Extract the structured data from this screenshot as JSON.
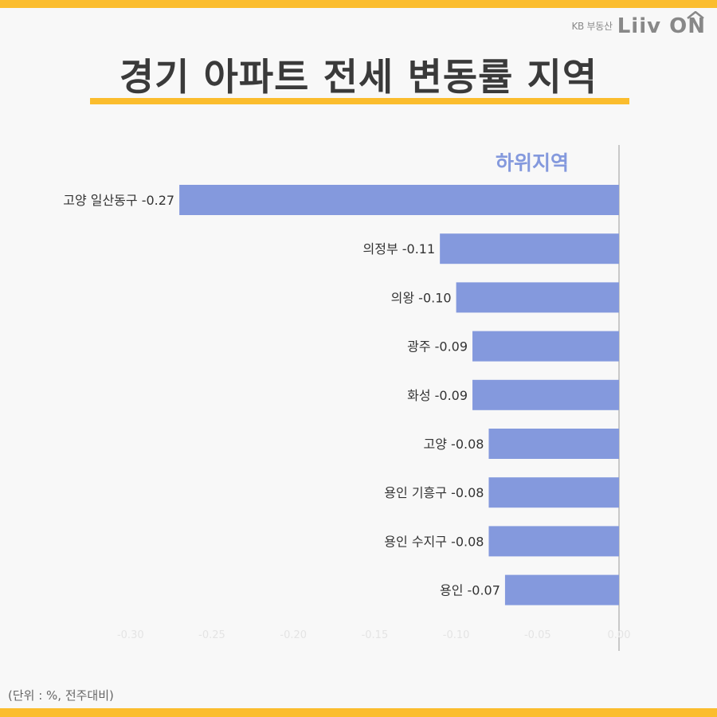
{
  "brand": {
    "sub": "KB 부동산",
    "logo": "Liiv ON"
  },
  "title": "경기 아파트 전세 변동률 지역",
  "footnote": "(단위 : %, 전주대비)",
  "colors": {
    "accent": "#fbbd2e",
    "bar": "#8499dd",
    "series_label": "#8499dd"
  },
  "chart_data": {
    "type": "bar",
    "orientation": "horizontal",
    "series_label": "하위지역",
    "categories": [
      "고양 일산동구",
      "의정부",
      "의왕",
      "광주",
      "화성",
      "고양",
      "용인 기흥구",
      "용인 수지구",
      "용인"
    ],
    "values": [
      -0.27,
      -0.11,
      -0.1,
      -0.09,
      -0.09,
      -0.08,
      -0.08,
      -0.08,
      -0.07
    ],
    "data_labels": [
      "고양 일산동구 -0.27",
      "의정부 -0.11",
      "의왕 -0.10",
      "광주 -0.09",
      "화성 -0.09",
      "고양 -0.08",
      "용인 기흥구 -0.08",
      "용인 수지구 -0.08",
      "용인 -0.07"
    ],
    "ticks": [
      "-0.30",
      "-0.25",
      "-0.20",
      "-0.15",
      "-0.10",
      "-0.05",
      "0.00"
    ],
    "xlim": [
      -0.3,
      0.0
    ],
    "grid": false
  }
}
